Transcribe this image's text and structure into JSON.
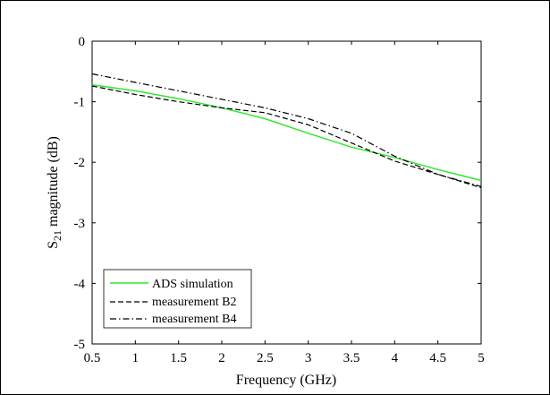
{
  "chart_data": {
    "type": "line",
    "title": "",
    "xlabel": "Frequency (GHz)",
    "ylabel_main": "S",
    "ylabel_sub": "21",
    "ylabel_rest": " magnitude (dB)",
    "xlim": [
      0.5,
      5
    ],
    "ylim": [
      -5,
      0
    ],
    "xticks": [
      0.5,
      1,
      1.5,
      2,
      2.5,
      3,
      3.5,
      4,
      4.5,
      5
    ],
    "xtick_labels": [
      "0.5",
      "1",
      "1.5",
      "2",
      "2.5",
      "3",
      "3.5",
      "4",
      "4.5",
      "5"
    ],
    "yticks": [
      0,
      -1,
      -2,
      -3,
      -4,
      -5
    ],
    "ytick_labels": [
      "0",
      "-1",
      "-2",
      "-3",
      "-4",
      "-5"
    ],
    "grid": false,
    "legend_position": "bottom-left",
    "series": [
      {
        "name": "ADS simulation",
        "color": "#33e633",
        "style": "solid",
        "x": [
          0.5,
          1.0,
          1.5,
          2.0,
          2.5,
          3.0,
          3.5,
          4.0,
          4.5,
          5.0
        ],
        "y": [
          -0.72,
          -0.82,
          -0.95,
          -1.1,
          -1.28,
          -1.52,
          -1.75,
          -1.92,
          -2.12,
          -2.3
        ]
      },
      {
        "name": "measurement B2",
        "color": "#000000",
        "style": "dashed",
        "x": [
          0.5,
          1.0,
          1.5,
          2.0,
          2.5,
          3.0,
          3.5,
          4.0,
          4.5,
          5.0
        ],
        "y": [
          -0.74,
          -0.88,
          -1.0,
          -1.1,
          -1.18,
          -1.38,
          -1.68,
          -1.98,
          -2.2,
          -2.42
        ]
      },
      {
        "name": "measurement B4",
        "color": "#000000",
        "style": "dashdot",
        "x": [
          0.5,
          1.0,
          1.5,
          2.0,
          2.5,
          3.0,
          3.5,
          4.0,
          4.5,
          5.0
        ],
        "y": [
          -0.54,
          -0.68,
          -0.82,
          -0.96,
          -1.1,
          -1.28,
          -1.52,
          -1.9,
          -2.2,
          -2.4
        ]
      }
    ]
  }
}
